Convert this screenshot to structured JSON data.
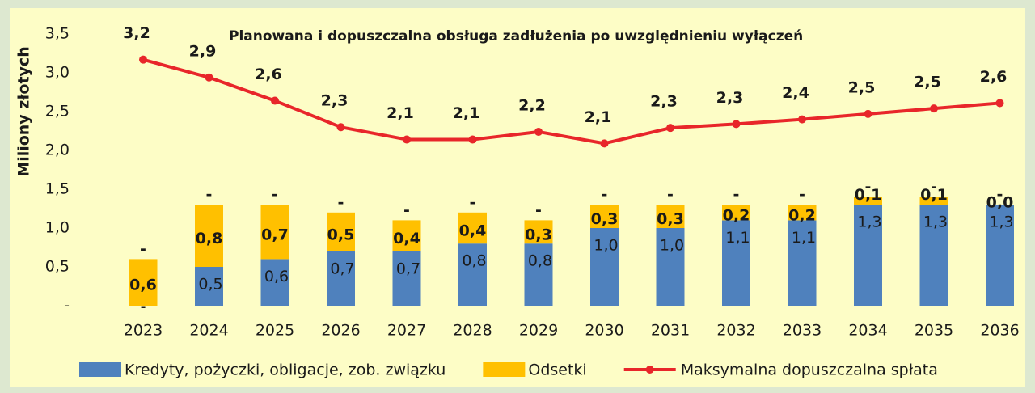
{
  "chart_data": {
    "type": "bar_line",
    "title": "Planowana i dopuszczalna obsługa zadłużenia po uwzględnieniu wyłączeń",
    "y_label": "Miliony złotych",
    "categories": [
      "2023",
      "2024",
      "2025",
      "2026",
      "2027",
      "2028",
      "2029",
      "2030",
      "2031",
      "2032",
      "2033",
      "2034",
      "2035",
      "2036"
    ],
    "series": [
      {
        "name": "Kredyty, pożyczki, obligacje, zob. związku",
        "type": "bar",
        "color": "#4f81bd",
        "values": [
          0,
          0.5,
          0.6,
          0.7,
          0.7,
          0.8,
          0.8,
          1.0,
          1.0,
          1.1,
          1.1,
          1.3,
          1.3,
          1.3
        ],
        "value_labels": [
          "-",
          "0,5",
          "0,6",
          "0,7",
          "0,7",
          "0,8",
          "0,8",
          "1,0",
          "1,0",
          "1,1",
          "1,1",
          "1,3",
          "1,3",
          "1,3"
        ]
      },
      {
        "name": "Odsetki",
        "type": "bar",
        "color": "#ffc000",
        "values": [
          0.6,
          0.8,
          0.7,
          0.5,
          0.4,
          0.4,
          0.3,
          0.3,
          0.3,
          0.2,
          0.2,
          0.1,
          0.1,
          0.0
        ],
        "value_labels": [
          "0,6",
          "0,8",
          "0,7",
          "0,5",
          "0,4",
          "0,4",
          "0,3",
          "0,3",
          "0,3",
          "0,2",
          "0,2",
          "0,1",
          "0,1",
          "0,0"
        ]
      },
      {
        "type": "bar",
        "color": "#ffc000",
        "values": [
          0,
          0,
          0,
          0,
          0,
          0,
          0,
          0,
          0,
          0,
          0,
          0,
          0,
          0
        ],
        "value_labels": [
          "-",
          "-",
          "-",
          "-",
          "-",
          "-",
          "-",
          "-",
          "-",
          "-",
          "-",
          "-",
          "-",
          "-"
        ]
      },
      {
        "name": "Maksymalna dopuszczalna spłata",
        "type": "line",
        "color": "#e8262a",
        "values": [
          3.17,
          2.94,
          2.64,
          2.3,
          2.14,
          2.14,
          2.24,
          2.09,
          2.29,
          2.34,
          2.4,
          2.47,
          2.54,
          2.61
        ],
        "value_labels": [
          "3,2",
          "2,9",
          "2,6",
          "2,3",
          "2,1",
          "2,1",
          "2,2",
          "2,1",
          "2,3",
          "2,3",
          "2,4",
          "2,5",
          "2,5",
          "2,6"
        ]
      }
    ],
    "ylim": [
      0,
      3.5
    ],
    "yticks": [
      {
        "value": 0,
        "label": "-"
      },
      {
        "value": 0.5,
        "label": "0,5"
      },
      {
        "value": 1.0,
        "label": "1,0"
      },
      {
        "value": 1.5,
        "label": "1,5"
      },
      {
        "value": 2.0,
        "label": "2,0"
      },
      {
        "value": 2.5,
        "label": "2,5"
      },
      {
        "value": 3.0,
        "label": "3,0"
      },
      {
        "value": 3.5,
        "label": "3,5"
      }
    ],
    "grid": false,
    "legend": "bottom"
  }
}
